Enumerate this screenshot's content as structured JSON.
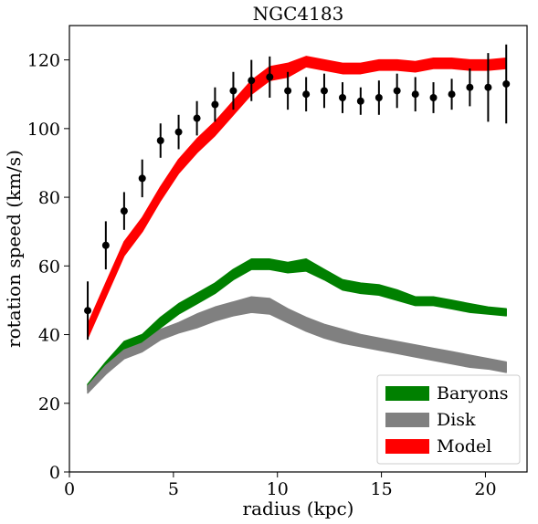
{
  "chart_data": {
    "type": "line",
    "title": "NGC4183",
    "xlabel": "radius (kpc)",
    "ylabel": "rotation speed (km/s)",
    "xlim": [
      0,
      22
    ],
    "ylim": [
      0,
      130
    ],
    "xticks": [
      0,
      5,
      10,
      15,
      20
    ],
    "yticks": [
      0,
      20,
      40,
      60,
      80,
      100,
      120
    ],
    "grid": false,
    "legend_position": "lower-right",
    "x": [
      0.88,
      1.75,
      2.63,
      3.5,
      4.38,
      5.25,
      6.13,
      7.0,
      7.88,
      8.75,
      9.63,
      10.5,
      11.38,
      12.25,
      13.13,
      14.0,
      14.88,
      15.75,
      16.63,
      17.5,
      18.38,
      19.25,
      20.13,
      21.0
    ],
    "bands": [
      {
        "name": "Baryons",
        "color": "#008000",
        "lower": [
          24,
          30,
          35,
          37,
          42,
          46,
          49,
          52,
          56,
          59,
          59,
          58,
          58.5,
          56,
          53,
          52,
          51.5,
          50,
          48.5,
          48.5,
          47.5,
          46.5,
          46,
          45.5
        ],
        "upper": [
          25.5,
          32,
          38,
          40,
          45,
          49,
          52,
          55,
          59,
          62,
          62,
          61,
          62,
          59,
          56,
          55,
          54.5,
          53,
          51,
          51,
          50,
          49,
          48,
          47.5
        ]
      },
      {
        "name": "Disk",
        "color": "#808080",
        "lower": [
          23,
          28.5,
          33,
          35,
          38.5,
          40.5,
          42,
          44,
          45.5,
          46.5,
          46,
          43.5,
          41,
          39,
          37.5,
          36.5,
          35.5,
          34.5,
          33.5,
          32.5,
          31.5,
          30.5,
          30,
          29
        ],
        "upper": [
          25,
          31,
          35.5,
          37.5,
          41.5,
          43.5,
          46,
          48,
          49.5,
          51,
          50.5,
          47.5,
          45,
          43,
          41.5,
          40,
          39,
          38,
          37,
          36,
          35,
          34,
          33,
          32
        ]
      },
      {
        "name": "Model",
        "color": "#ff0000",
        "lower": [
          39,
          51,
          63,
          70,
          79,
          87,
          93,
          98,
          104,
          110,
          114,
          115,
          118,
          117,
          116,
          116,
          117,
          117,
          116.5,
          117.5,
          117.5,
          117,
          117,
          117.5
        ],
        "upper": [
          43,
          55,
          67,
          74,
          83,
          91,
          97,
          102,
          108,
          114,
          118,
          119,
          121,
          120,
          119,
          119,
          120,
          120,
          119.5,
          120.5,
          120.5,
          120,
          120,
          120.5
        ]
      }
    ],
    "observed": {
      "color": "#000000",
      "x": [
        0.88,
        1.75,
        2.63,
        3.5,
        4.38,
        5.25,
        6.13,
        7.0,
        7.88,
        8.75,
        9.63,
        10.5,
        11.38,
        12.25,
        13.13,
        14.0,
        14.88,
        15.75,
        16.63,
        17.5,
        18.38,
        19.25,
        20.13,
        21.0
      ],
      "y": [
        47,
        66,
        76,
        85.5,
        96.5,
        99,
        103,
        107,
        111,
        114,
        115,
        111,
        110,
        111,
        109,
        108,
        109,
        111,
        110,
        109,
        110,
        112,
        112,
        113
      ],
      "err": [
        8.5,
        7,
        5.5,
        5.5,
        5,
        5,
        5,
        5,
        5.5,
        6,
        6,
        5.5,
        5,
        5,
        4.5,
        4,
        5,
        5,
        5,
        4.5,
        4.5,
        5.5,
        10,
        11.5
      ]
    }
  }
}
